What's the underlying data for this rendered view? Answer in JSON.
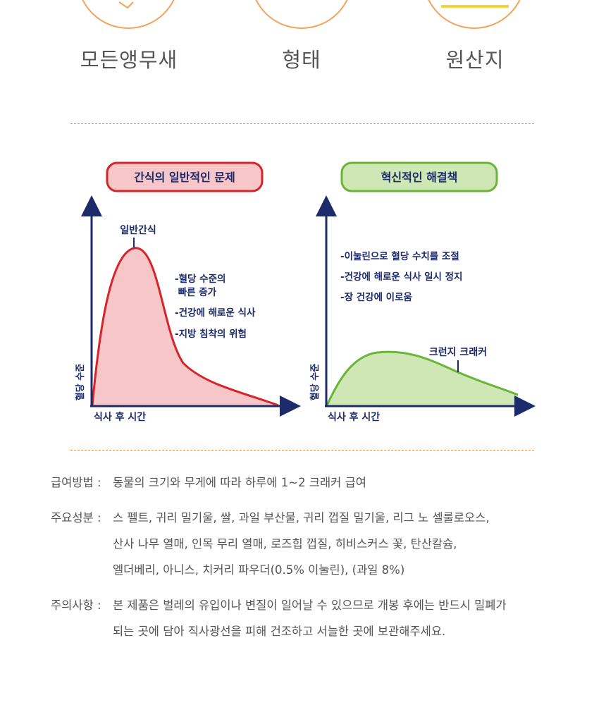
{
  "categories": [
    {
      "label": "모든앵무새",
      "icon": "parrot-icon"
    },
    {
      "label": "형태",
      "icon": "shape-icon"
    },
    {
      "label": "원산지",
      "icon": "origin-flag-icon"
    }
  ],
  "left_chart": {
    "title": "간식의 일반적인 문제",
    "peak_label": "일반간식",
    "notes": [
      "-혈당 수준의",
      " 빠른 증가",
      "-건강에 해로운 식사",
      "-지방 침착의 위험"
    ],
    "ylabel": "혈당 수준",
    "xlabel": "식사 후 시간",
    "color_stroke": "#d8232a",
    "color_fill": "#f6c6c9"
  },
  "right_chart": {
    "title": "혁신적인 해결책",
    "notes": [
      "-이눌린으로 혈당 수치를 조절",
      "-건강에 해로운 식사 일시 정지",
      "-장 건강에 이로움"
    ],
    "curve_label": "크런지 크래커",
    "ylabel": "혈당 수준",
    "xlabel": "식사 후 시간",
    "color_stroke": "#6ab539",
    "color_fill": "#cfe7b4"
  },
  "axis_color": "#1d2b6b",
  "info": [
    {
      "label": "급여방법 :",
      "lines": [
        "동물의 크기와 무게에 따라 하루에 1~2 크래커 급여"
      ]
    },
    {
      "label": "주요성분 :",
      "lines": [
        "스 펠트, 귀리 밀기울, 쌀, 과일 부산물, 귀리 껍질 밀기울, 리그 노 셀룰로오스,",
        "산사 나무 열매, 인목 무리 열매, 로즈힙 껍질, 히비스커스 꽃, 탄산칼슘,",
        "엘더베리, 아니스, 치커리 파우더(0.5% 이눌린), (과일 8%)"
      ]
    },
    {
      "label": "주의사항 :",
      "lines": [
        "본 제품은 벌레의 유입이나 변질이 일어날 수 있으므로 개봉 후에는 반드시 밀폐가",
        "되는 곳에 담아 직사광선을 피해 건조하고 서늘한 곳에 보관해주세요."
      ]
    }
  ]
}
